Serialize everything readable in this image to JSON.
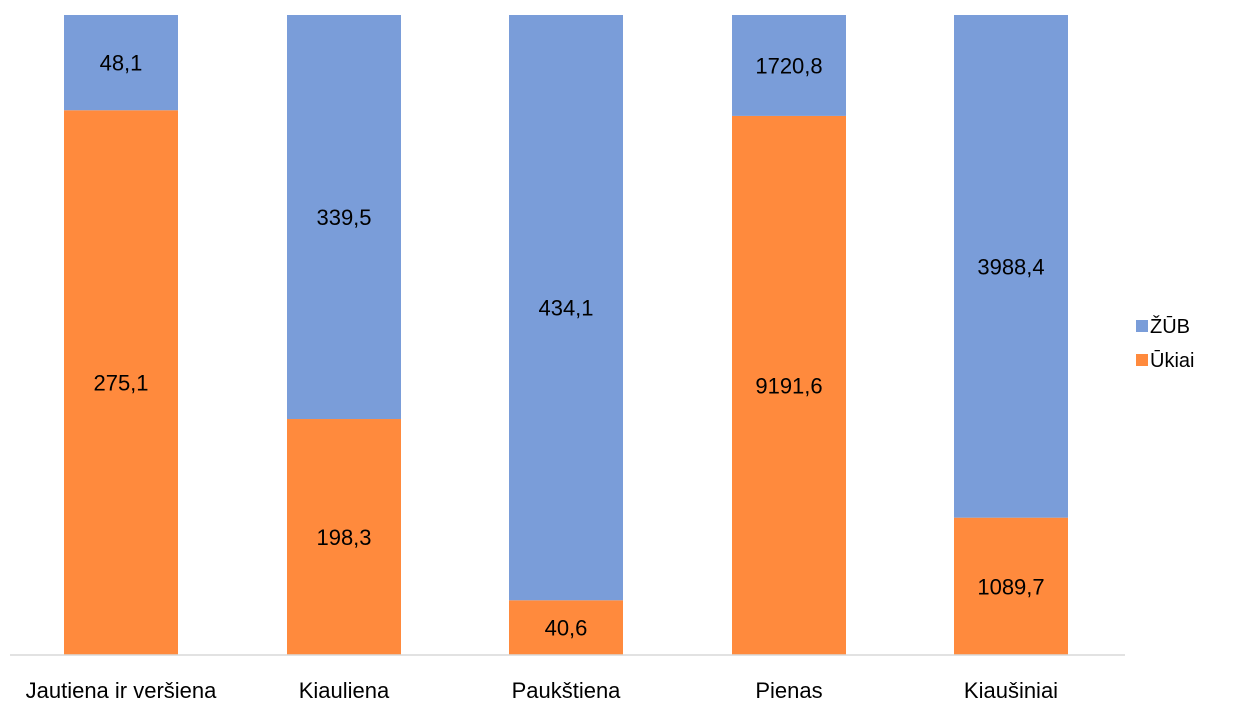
{
  "chart_data": {
    "type": "bar",
    "stacked": true,
    "normalized": true,
    "categories": [
      "Jautiena ir veršiena",
      "Kiauliena",
      "Paukštiena",
      "Pienas",
      "Kiaušiniai"
    ],
    "series": [
      {
        "name": "Ūkiai",
        "color": "#FF8A3D",
        "values": [
          275.1,
          198.3,
          40.6,
          9191.6,
          1089.7
        ],
        "labels": [
          "275,1",
          "198,3",
          "40,6",
          "9191,6",
          "1089,7"
        ]
      },
      {
        "name": "ŽŪB",
        "color": "#7A9DD9",
        "values": [
          48.1,
          339.5,
          434.1,
          1720.8,
          3988.4
        ],
        "labels": [
          "48,1",
          "339,5",
          "434,1",
          "1720,8",
          "3988,4"
        ]
      }
    ],
    "legend": {
      "position": "right",
      "entries": [
        "ŽŪB",
        "Ūkiai"
      ]
    },
    "title": "",
    "xlabel": "",
    "ylabel": "",
    "grid": false
  }
}
